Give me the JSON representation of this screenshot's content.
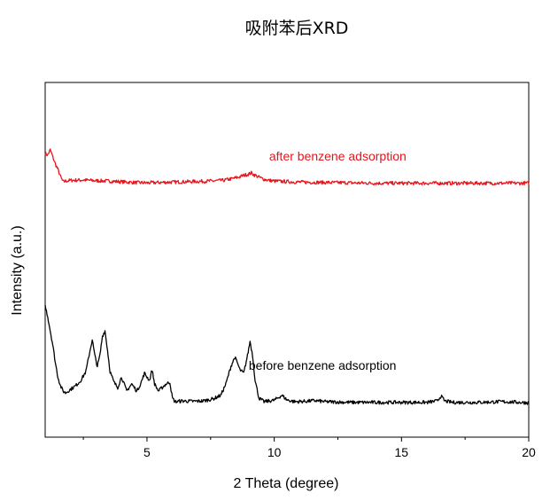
{
  "chart_data": {
    "type": "line",
    "title": "吸附苯后XRD",
    "xlabel": "2 Theta (degree)",
    "ylabel": "Intensity (a.u.)",
    "xlim": [
      1,
      20
    ],
    "xticks": [
      5,
      10,
      15,
      20
    ],
    "xminor_ticks": [
      2.5,
      7.5,
      12.5,
      17.5
    ],
    "yticks_shown": false,
    "grid": false,
    "legend": "none",
    "series": [
      {
        "name": "after benzene adsorption",
        "color": "#e8141b",
        "x": [
          1.0,
          1.1,
          1.2,
          1.3,
          1.4,
          1.5,
          1.6,
          1.7,
          1.8,
          2.0,
          2.5,
          3.0,
          3.5,
          4.0,
          4.5,
          5.0,
          5.5,
          6.0,
          6.5,
          7.0,
          7.5,
          8.0,
          8.3,
          8.6,
          8.8,
          9.0,
          9.1,
          9.2,
          9.4,
          9.6,
          9.8,
          10.0,
          10.3,
          10.6,
          11.0,
          12.0,
          13.0,
          14.0,
          15.0,
          16.0,
          17.0,
          18.0,
          19.0,
          20.0
        ],
        "y": [
          0.8,
          0.795,
          0.81,
          0.79,
          0.77,
          0.755,
          0.735,
          0.72,
          0.722,
          0.724,
          0.725,
          0.723,
          0.722,
          0.72,
          0.718,
          0.717,
          0.718,
          0.719,
          0.72,
          0.721,
          0.722,
          0.724,
          0.728,
          0.733,
          0.738,
          0.742,
          0.745,
          0.74,
          0.733,
          0.727,
          0.724,
          0.722,
          0.721,
          0.72,
          0.719,
          0.718,
          0.717,
          0.716,
          0.716,
          0.716,
          0.716,
          0.716,
          0.716,
          0.716
        ]
      },
      {
        "name": "before benzene adsorption",
        "color": "#000000",
        "x": [
          1.0,
          1.1,
          1.2,
          1.3,
          1.4,
          1.5,
          1.6,
          1.7,
          1.8,
          2.0,
          2.2,
          2.4,
          2.6,
          2.75,
          2.85,
          2.95,
          3.05,
          3.15,
          3.25,
          3.35,
          3.45,
          3.55,
          3.7,
          3.85,
          4.0,
          4.2,
          4.4,
          4.6,
          4.75,
          4.9,
          5.0,
          5.1,
          5.2,
          5.3,
          5.45,
          5.6,
          5.75,
          5.9,
          6.0,
          6.1,
          6.4,
          6.8,
          7.2,
          7.6,
          7.9,
          8.1,
          8.3,
          8.45,
          8.55,
          8.65,
          8.8,
          8.95,
          9.05,
          9.15,
          9.25,
          9.4,
          9.6,
          10.0,
          10.3,
          10.5,
          10.8,
          11.2,
          11.6,
          12.0,
          13.0,
          14.0,
          15.0,
          16.0,
          16.4,
          16.55,
          16.7,
          17.0,
          18.0,
          19.0,
          20.0
        ],
        "y": [
          0.37,
          0.34,
          0.3,
          0.26,
          0.21,
          0.17,
          0.145,
          0.13,
          0.125,
          0.135,
          0.145,
          0.16,
          0.185,
          0.24,
          0.275,
          0.23,
          0.2,
          0.23,
          0.285,
          0.3,
          0.245,
          0.185,
          0.155,
          0.14,
          0.17,
          0.13,
          0.15,
          0.13,
          0.15,
          0.18,
          0.17,
          0.16,
          0.19,
          0.15,
          0.13,
          0.14,
          0.15,
          0.155,
          0.11,
          0.1,
          0.102,
          0.101,
          0.102,
          0.108,
          0.118,
          0.15,
          0.2,
          0.225,
          0.21,
          0.19,
          0.18,
          0.23,
          0.27,
          0.23,
          0.16,
          0.11,
          0.1,
          0.104,
          0.118,
          0.105,
          0.1,
          0.101,
          0.103,
          0.1,
          0.098,
          0.098,
          0.098,
          0.098,
          0.102,
          0.116,
          0.102,
          0.098,
          0.098,
          0.1,
          0.097
        ]
      }
    ],
    "annotations": [
      {
        "text": "after benzene adsorption",
        "color": "#e8141b",
        "x": 9.8,
        "y": 0.78,
        "align": "left"
      },
      {
        "text": "before benzene adsorption",
        "color": "#000000",
        "x": 9.0,
        "y": 0.19,
        "align": "left"
      }
    ]
  }
}
